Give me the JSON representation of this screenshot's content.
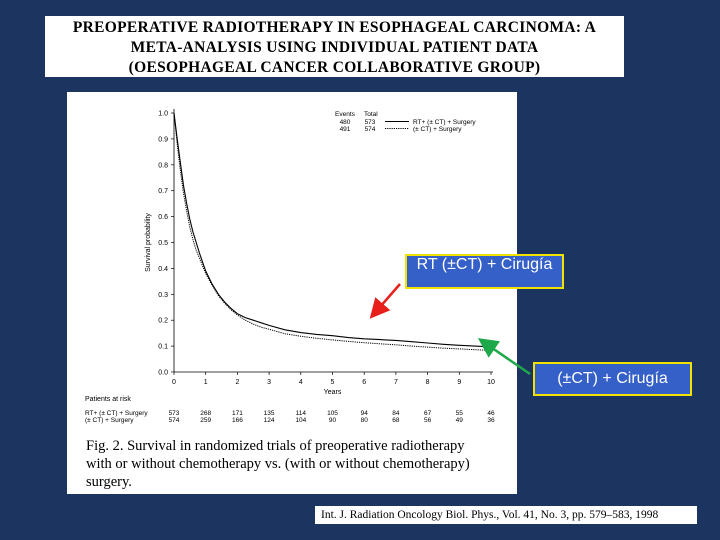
{
  "title": {
    "lines": [
      "PREOPERATIVE RADIOTHERAPY IN ESOPHAGEAL CARCINOMA: A",
      "META-ANALYSIS USING INDIVIDUAL PATIENT DATA",
      "(OESOPHAGEAL CANCER COLLABORATIVE GROUP)"
    ]
  },
  "caption": {
    "lines": [
      "Fig. 2. Survival in randomized trials of preoperative radiotherapy",
      "with or without chemotherapy vs. (with or without chemotherapy)",
      "surgery."
    ]
  },
  "callouts": {
    "rt": "RT (±CT) + Cirugía",
    "ct": "(±CT) + Cirugía",
    "rt_arrow_color": "#e8201c",
    "ct_arrow_color": "#1ea84a"
  },
  "reference": "Int. J. Radiation Oncology Biol. Phys., Vol. 41, No. 3, pp. 579–583, 1998",
  "colors": {
    "background": "#1c3560",
    "callout_fill": "#3560c8",
    "callout_border": "#f2e200"
  },
  "chart_data": {
    "type": "line",
    "xlabel": "Years",
    "ylabel": "Survival probability",
    "xlim": [
      0,
      10
    ],
    "ylim": [
      0,
      1.0
    ],
    "x_ticks": [
      "0",
      "1",
      "2",
      "3",
      "4",
      "5",
      "6",
      "7",
      "8",
      "9",
      "10"
    ],
    "y_ticks": [
      "0.0",
      "0.1",
      "0.2",
      "0.3",
      "0.4",
      "0.5",
      "0.6",
      "0.7",
      "0.8",
      "0.9",
      "1.0"
    ],
    "legend": {
      "placement": "top-right",
      "header_events": "Events",
      "header_total": "Total",
      "entries": [
        {
          "events": "480",
          "total": "573",
          "label": "RT+ (± CT) + Surgery",
          "style": "solid"
        },
        {
          "events": "491",
          "total": "574",
          "label": "(± CT) + Surgery",
          "style": "dotted"
        }
      ]
    },
    "series": [
      {
        "name": "RT+ (± CT) + Surgery",
        "style": "solid",
        "x": [
          0,
          0.05,
          0.1,
          0.2,
          0.3,
          0.4,
          0.5,
          0.6,
          0.7,
          0.8,
          0.9,
          1.0,
          1.2,
          1.4,
          1.6,
          1.8,
          2.0,
          2.25,
          2.5,
          2.75,
          3.0,
          3.5,
          4.0,
          4.5,
          5.0,
          5.5,
          6.0,
          6.5,
          7.0,
          7.5,
          8.0,
          8.5,
          9.0,
          9.5,
          10.0
        ],
        "y": [
          1.0,
          0.95,
          0.9,
          0.81,
          0.72,
          0.65,
          0.59,
          0.54,
          0.5,
          0.46,
          0.425,
          0.39,
          0.34,
          0.3,
          0.27,
          0.245,
          0.225,
          0.21,
          0.2,
          0.19,
          0.18,
          0.163,
          0.152,
          0.145,
          0.14,
          0.133,
          0.128,
          0.125,
          0.122,
          0.117,
          0.112,
          0.107,
          0.103,
          0.1,
          0.097
        ]
      },
      {
        "name": "(± CT) + Surgery",
        "style": "dotted",
        "x": [
          0,
          0.05,
          0.1,
          0.2,
          0.3,
          0.4,
          0.5,
          0.6,
          0.7,
          0.8,
          0.9,
          1.0,
          1.2,
          1.4,
          1.6,
          1.8,
          2.0,
          2.25,
          2.5,
          2.75,
          3.0,
          3.5,
          4.0,
          4.5,
          5.0,
          5.5,
          6.0,
          6.5,
          7.0,
          7.5,
          8.0,
          8.5,
          9.0,
          9.5,
          10.0
        ],
        "y": [
          1.0,
          0.94,
          0.88,
          0.78,
          0.69,
          0.62,
          0.56,
          0.51,
          0.47,
          0.44,
          0.41,
          0.38,
          0.335,
          0.295,
          0.265,
          0.24,
          0.22,
          0.2,
          0.185,
          0.173,
          0.165,
          0.148,
          0.138,
          0.13,
          0.124,
          0.118,
          0.113,
          0.109,
          0.105,
          0.1,
          0.096,
          0.092,
          0.089,
          0.086,
          0.083
        ]
      }
    ],
    "patients_at_risk": {
      "title": "Patients at risk",
      "rows": [
        {
          "label_line1": "RT+ (± CT) + Surgery",
          "values": [
            "573",
            "268",
            "171",
            "135",
            "114",
            "105",
            "94",
            "84",
            "67",
            "55",
            "46"
          ]
        },
        {
          "label_line1": "(± CT) + Surgery",
          "values": [
            "574",
            "259",
            "166",
            "124",
            "104",
            "90",
            "80",
            "68",
            "56",
            "49",
            "36"
          ]
        }
      ]
    }
  }
}
